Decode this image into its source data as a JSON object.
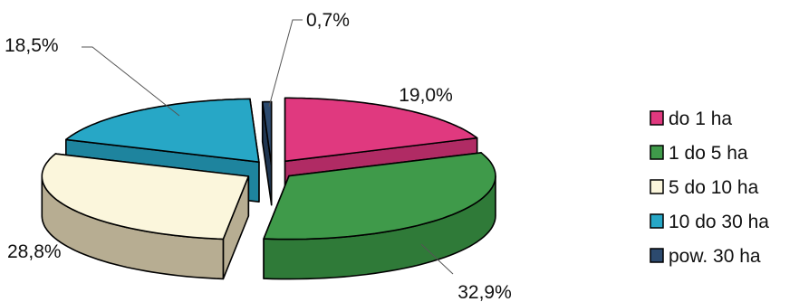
{
  "chart_data": {
    "type": "pie",
    "title": "",
    "style": "3d-exploded",
    "legend_position": "right",
    "categories": [
      "do 1 ha",
      "1 do 5 ha",
      "5 do 10 ha",
      "10 do 30 ha",
      "pow. 30 ha"
    ],
    "values": [
      19.0,
      32.9,
      28.8,
      18.5,
      0.7
    ],
    "data_labels": [
      "19,0%",
      "32,9%",
      "28,8%",
      "18,5%",
      "0,7%"
    ],
    "colors": [
      "#e0397f",
      "#3f9a4a",
      "#fbf6dc",
      "#27a7c6",
      "#2c4a6e"
    ],
    "side_colors": [
      "#b02b64",
      "#2f7a38",
      "#b7ad92",
      "#1e849e",
      "#1f3550"
    ]
  }
}
